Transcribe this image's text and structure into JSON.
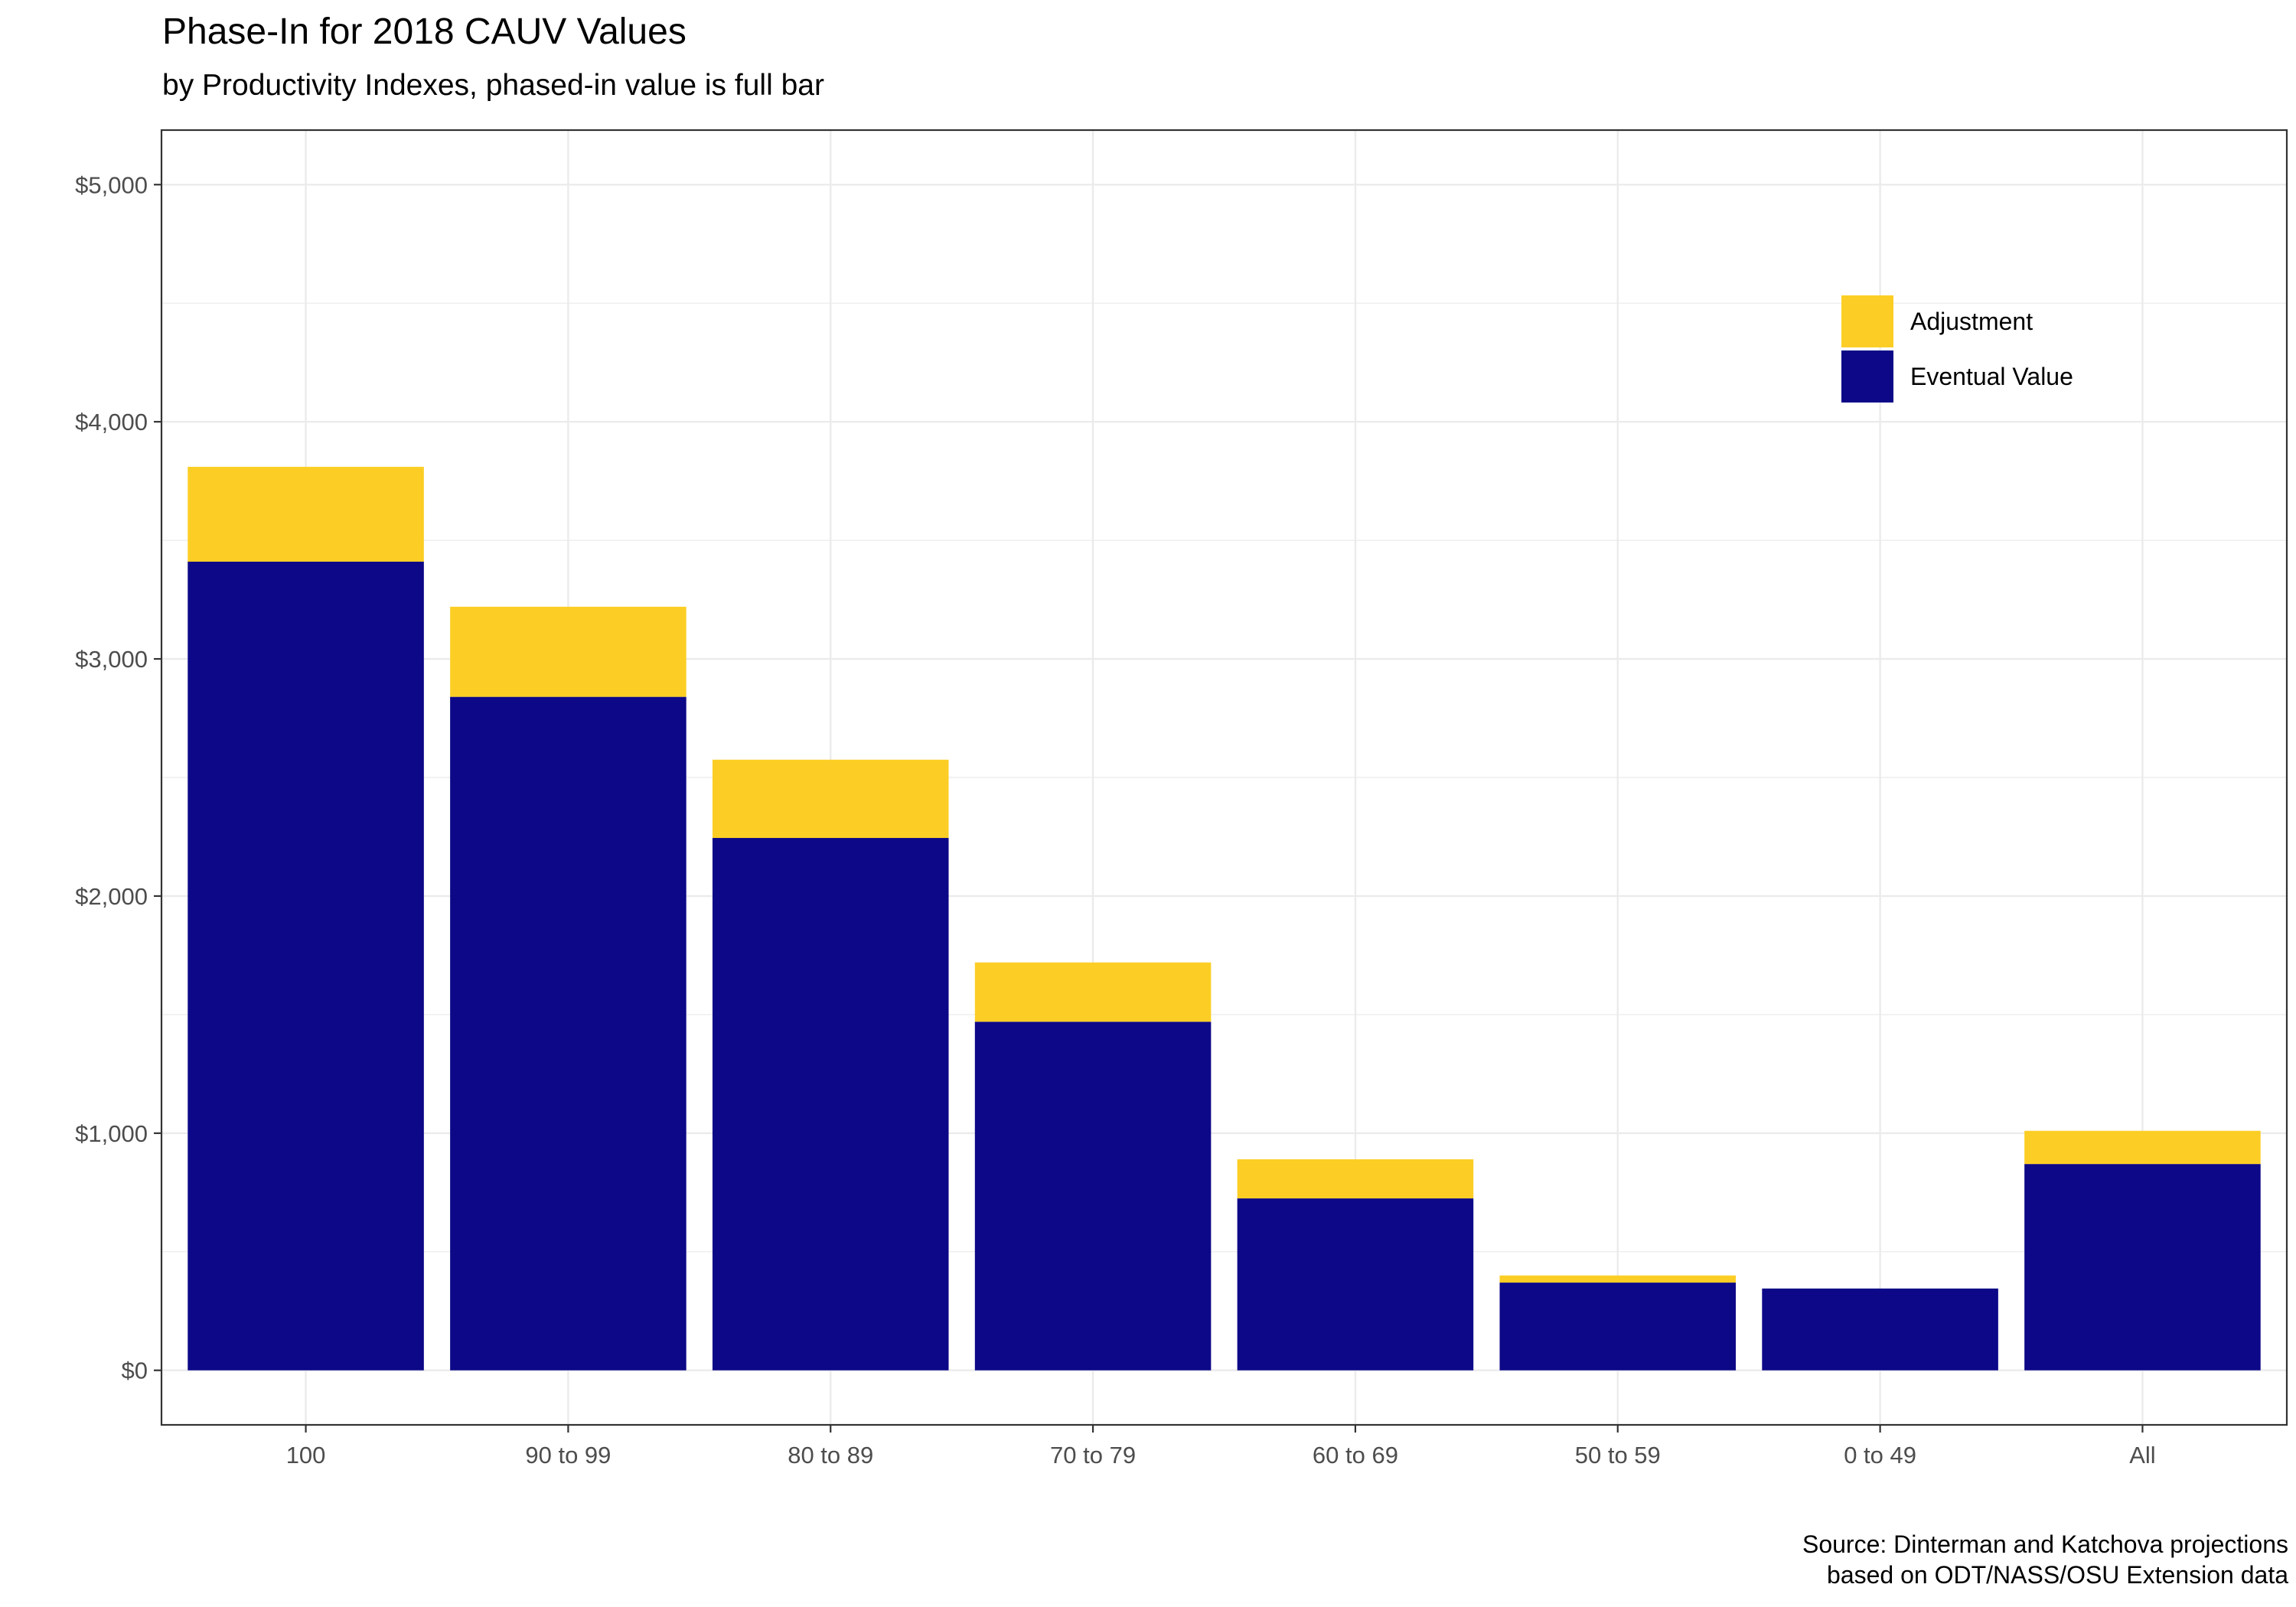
{
  "chart_data": {
    "type": "bar",
    "stacked": true,
    "title": "Phase-In for 2018 CAUV Values",
    "subtitle": "by Productivity Indexes, phased-in value is full bar",
    "caption": [
      "Source: Dinterman and Katchova projections",
      "based on ODT/NASS/OSU Extension data"
    ],
    "xlabel": "",
    "ylabel": "",
    "categories": [
      "100",
      "90 to 99",
      "80 to 89",
      "70 to 79",
      "60 to 69",
      "50 to 59",
      "0 to 49",
      "All"
    ],
    "series": [
      {
        "name": "Eventual Value",
        "color": "#0d0887",
        "values": [
          3410,
          2840,
          2245,
          1470,
          725,
          370,
          345,
          870
        ]
      },
      {
        "name": "Adjustment",
        "color": "#fcce25",
        "values": [
          400,
          380,
          330,
          250,
          165,
          30,
          0,
          140
        ]
      }
    ],
    "ylim": [
      -230,
      5230
    ],
    "yticks": [
      0,
      1000,
      2000,
      3000,
      4000,
      5000
    ],
    "ytick_labels": [
      "$0",
      "$1,000",
      "$2,000",
      "$3,000",
      "$4,000",
      "$5,000"
    ],
    "grid": true,
    "legend": {
      "position": "top-right",
      "entries": [
        {
          "name": "Adjustment",
          "color": "#fcce25"
        },
        {
          "name": "Eventual Value",
          "color": "#0d0887"
        }
      ]
    }
  }
}
